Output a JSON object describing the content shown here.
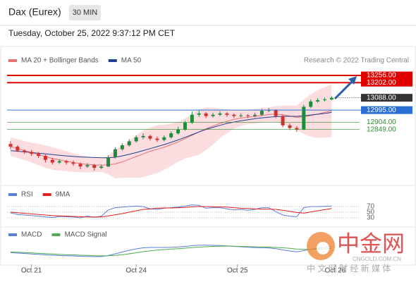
{
  "header": {
    "title": "Dax (Eurex)",
    "interval": "30 MIN",
    "timestamp": "Tuesday, October 25, 2022 9:37:12 PM CET"
  },
  "watermark": {
    "brand": "中金网",
    "site": "CNGOLD.COM.CN",
    "slogan": "中 文 网 财 经 新 媒 体"
  },
  "chart_data": [
    {
      "type": "candlestick",
      "source": "Research © 2022 Trading Central",
      "xlim": [
        -0.5,
        50
      ],
      "ylim": [
        12470,
        13320
      ],
      "up_color": "#1e8c3c",
      "down_color": "#d32f2f",
      "candles": [
        [
          12740,
          12760,
          12700,
          12720
        ],
        [
          12720,
          12730,
          12680,
          12690
        ],
        [
          12690,
          12700,
          12665,
          12680
        ],
        [
          12680,
          12695,
          12650,
          12665
        ],
        [
          12665,
          12680,
          12635,
          12650
        ],
        [
          12650,
          12660,
          12600,
          12620
        ],
        [
          12620,
          12635,
          12585,
          12600
        ],
        [
          12600,
          12625,
          12590,
          12610
        ],
        [
          12610,
          12620,
          12585,
          12600
        ],
        [
          12600,
          12615,
          12575,
          12590
        ],
        [
          12590,
          12600,
          12550,
          12570
        ],
        [
          12570,
          12595,
          12560,
          12580
        ],
        [
          12580,
          12590,
          12540,
          12560
        ],
        [
          12560,
          12585,
          12550,
          12570
        ],
        [
          12570,
          12655,
          12565,
          12640
        ],
        [
          12640,
          12715,
          12630,
          12700
        ],
        [
          12700,
          12745,
          12690,
          12730
        ],
        [
          12730,
          12775,
          12720,
          12760
        ],
        [
          12760,
          12805,
          12750,
          12790
        ],
        [
          12790,
          12820,
          12775,
          12800
        ],
        [
          12800,
          12810,
          12765,
          12780
        ],
        [
          12780,
          12795,
          12755,
          12770
        ],
        [
          12770,
          12805,
          12760,
          12790
        ],
        [
          12790,
          12835,
          12780,
          12820
        ],
        [
          12820,
          12870,
          12810,
          12850
        ],
        [
          12850,
          12915,
          12840,
          12900
        ],
        [
          12900,
          12985,
          12890,
          12960
        ],
        [
          12960,
          12990,
          12945,
          12970
        ],
        [
          12970,
          12980,
          12935,
          12950
        ],
        [
          12950,
          12975,
          12940,
          12960
        ],
        [
          12960,
          12985,
          12950,
          12970
        ],
        [
          12970,
          12980,
          12945,
          12960
        ],
        [
          12960,
          12970,
          12935,
          12950
        ],
        [
          12950,
          12970,
          12940,
          12955
        ],
        [
          12955,
          12965,
          12935,
          12950
        ],
        [
          12950,
          12975,
          12940,
          12960
        ],
        [
          12960,
          13005,
          12950,
          12990
        ],
        [
          12990,
          13010,
          12980,
          12995
        ],
        [
          12995,
          13000,
          12935,
          12950
        ],
        [
          12950,
          12960,
          12865,
          12880
        ],
        [
          12880,
          12895,
          12845,
          12860
        ],
        [
          12860,
          12875,
          12830,
          12850
        ],
        [
          12850,
          13035,
          12845,
          13020
        ],
        [
          13020,
          13075,
          13010,
          13060
        ],
        [
          13060,
          13085,
          13050,
          13070
        ],
        [
          13070,
          13090,
          13060,
          13075
        ],
        [
          13075,
          13100,
          13070,
          13088
        ]
      ],
      "series": [
        {
          "name": "MA 20 + Bollinger Bands",
          "color": "#e57373",
          "band_color": "#fbdde0",
          "values": [
            12720,
            12705,
            12690,
            12675,
            12660,
            12645,
            12630,
            12620,
            12610,
            12600,
            12592,
            12586,
            12582,
            12580,
            12582,
            12590,
            12605,
            12625,
            12645,
            12665,
            12685,
            12700,
            12715,
            12735,
            12755,
            12780,
            12805,
            12830,
            12855,
            12875,
            12895,
            12910,
            12925,
            12935,
            12942,
            12948,
            12955,
            12962,
            12965,
            12960,
            12950,
            12940,
            12945,
            12955,
            12965,
            12978,
            12990
          ],
          "upper": [
            12790,
            12775,
            12762,
            12750,
            12740,
            12730,
            12715,
            12700,
            12685,
            12670,
            12657,
            12646,
            12637,
            12630,
            12652,
            12700,
            12725,
            12765,
            12805,
            12840,
            12865,
            12880,
            12885,
            12895,
            12905,
            12930,
            12965,
            13000,
            13015,
            13015,
            13005,
            13000,
            12995,
            12995,
            12997,
            13003,
            13010,
            13017,
            13025,
            13030,
            13030,
            13030,
            13075,
            13115,
            13145,
            13168,
            13190
          ],
          "lower": [
            12650,
            12635,
            12618,
            12600,
            12580,
            12560,
            12545,
            12540,
            12535,
            12530,
            12527,
            12526,
            12527,
            12530,
            12512,
            12480,
            12485,
            12485,
            12485,
            12490,
            12505,
            12520,
            12545,
            12575,
            12605,
            12630,
            12645,
            12660,
            12695,
            12735,
            12785,
            12820,
            12855,
            12875,
            12887,
            12893,
            12900,
            12907,
            12905,
            12890,
            12870,
            12850,
            12815,
            12795,
            12785,
            12788,
            12790
          ]
        },
        {
          "name": "MA 50",
          "color": "#1f3f8f",
          "values": [
            12690,
            12685,
            12680,
            12675,
            12670,
            12665,
            12660,
            12655,
            12650,
            12646,
            12642,
            12640,
            12638,
            12636,
            12636,
            12640,
            12650,
            12662,
            12675,
            12690,
            12705,
            12720,
            12735,
            12752,
            12770,
            12790,
            12810,
            12830,
            12850,
            12865,
            12880,
            12895,
            12905,
            12915,
            12922,
            12930,
            12937,
            12942,
            12946,
            12948,
            12948,
            12948,
            12952,
            12958,
            12964,
            12970,
            12978
          ]
        }
      ],
      "levels": [
        {
          "value": 13256,
          "label": "13256.00",
          "color": "#e00000",
          "line": "solid",
          "label_style": "box"
        },
        {
          "value": 13202,
          "label": "13202.00",
          "color": "#e00000",
          "line": "solid",
          "label_style": "box"
        },
        {
          "value": 13088,
          "label": "13088.00",
          "color": "#333333",
          "line": "dotted",
          "label_style": "box"
        },
        {
          "value": 12995,
          "label": "12995.00",
          "color": "#2b6fd6",
          "line": "solid",
          "label_style": "box"
        },
        {
          "value": 12904,
          "label": "12904.00",
          "color": "#2e8b2e",
          "line": "thin",
          "label_style": "plain"
        },
        {
          "value": 12849,
          "label": "12849.00",
          "color": "#2e8b2e",
          "line": "thin",
          "label_style": "plain"
        }
      ]
    },
    {
      "type": "line",
      "xlim": [
        -0.5,
        50
      ],
      "ylim": [
        20,
        80
      ],
      "yticks": [
        70,
        50,
        30
      ],
      "grid": true,
      "series": [
        {
          "name": "RSI",
          "color": "#5b7fd6",
          "values": [
            48,
            42,
            40,
            38,
            36,
            33,
            31,
            35,
            34,
            33,
            30,
            36,
            32,
            36,
            58,
            66,
            68,
            70,
            72,
            70,
            62,
            60,
            64,
            66,
            68,
            72,
            76,
            74,
            64,
            66,
            66,
            62,
            58,
            60,
            57,
            60,
            66,
            66,
            52,
            40,
            36,
            34,
            66,
            70,
            70,
            71,
            72
          ]
        },
        {
          "name": "9MA",
          "color": "#e02020",
          "values": [
            50,
            48,
            46,
            44,
            42,
            40,
            38,
            37,
            36,
            35,
            34,
            33,
            33,
            33,
            37,
            41,
            45,
            50,
            55,
            60,
            62,
            64,
            65,
            65,
            66,
            67,
            69,
            70,
            70,
            69,
            69,
            68,
            66,
            64,
            63,
            62,
            61,
            61,
            60,
            57,
            53,
            49,
            47,
            51,
            55,
            59,
            63
          ]
        }
      ]
    },
    {
      "type": "line",
      "xlim": [
        -0.5,
        50
      ],
      "ylim": [
        -60,
        60
      ],
      "xticks": [
        {
          "value": 3,
          "label": "Oct 21"
        },
        {
          "value": 18,
          "label": "Oct 24"
        },
        {
          "value": 32.5,
          "label": "Oct 25"
        },
        {
          "value": 46.5,
          "label": "Oct 26"
        }
      ],
      "series": [
        {
          "name": "MACD",
          "color": "#5b7fd6",
          "values": [
            -5,
            -8,
            -10,
            -13,
            -15,
            -18,
            -20,
            -22,
            -23,
            -24,
            -26,
            -27,
            -28,
            -28,
            -22,
            -12,
            -2,
            8,
            16,
            22,
            24,
            24,
            24,
            25,
            27,
            30,
            34,
            37,
            37,
            36,
            35,
            33,
            30,
            28,
            25,
            23,
            22,
            21,
            17,
            10,
            4,
            -1,
            6,
            14,
            20,
            25,
            30
          ]
        },
        {
          "name": "MACD Signal",
          "color": "#4caf50",
          "values": [
            -2,
            -3,
            -5,
            -7,
            -9,
            -11,
            -13,
            -15,
            -17,
            -18,
            -20,
            -21,
            -23,
            -24,
            -23,
            -21,
            -17,
            -12,
            -6,
            0,
            5,
            9,
            12,
            15,
            17,
            20,
            23,
            26,
            28,
            30,
            31,
            32,
            31,
            30,
            29,
            28,
            27,
            26,
            24,
            22,
            19,
            15,
            13,
            13,
            14,
            16,
            19
          ]
        }
      ]
    }
  ]
}
